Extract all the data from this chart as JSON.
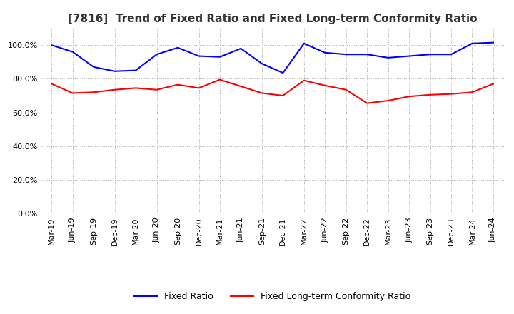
{
  "title": "[7816]  Trend of Fixed Ratio and Fixed Long-term Conformity Ratio",
  "title_fontsize": 11,
  "x_labels": [
    "Mar-19",
    "Jun-19",
    "Sep-19",
    "Dec-19",
    "Mar-20",
    "Jun-20",
    "Sep-20",
    "Dec-20",
    "Mar-21",
    "Jun-21",
    "Sep-21",
    "Dec-21",
    "Mar-22",
    "Jun-22",
    "Sep-22",
    "Dec-22",
    "Mar-23",
    "Jun-23",
    "Sep-23",
    "Dec-23",
    "Mar-24",
    "Jun-24"
  ],
  "fixed_ratio": [
    100.0,
    96.0,
    87.0,
    84.5,
    85.0,
    94.5,
    98.5,
    93.5,
    93.0,
    98.0,
    89.0,
    83.5,
    101.0,
    95.5,
    94.5,
    94.5,
    92.5,
    93.5,
    94.5,
    94.5,
    101.0,
    101.5
  ],
  "fixed_lt_ratio": [
    77.0,
    71.5,
    72.0,
    73.5,
    74.5,
    73.5,
    76.5,
    74.5,
    79.5,
    75.5,
    71.5,
    70.0,
    79.0,
    76.0,
    73.5,
    65.5,
    67.0,
    69.5,
    70.5,
    71.0,
    72.0,
    77.0
  ],
  "fixed_ratio_color": "#0000ff",
  "fixed_lt_ratio_color": "#ff0000",
  "ylim": [
    0,
    110
  ],
  "yticks": [
    0,
    20,
    40,
    60,
    80,
    100
  ],
  "background_color": "#ffffff",
  "grid_color": "#aaaaaa",
  "legend_fixed_ratio": "Fixed Ratio",
  "legend_fixed_lt_ratio": "Fixed Long-term Conformity Ratio"
}
